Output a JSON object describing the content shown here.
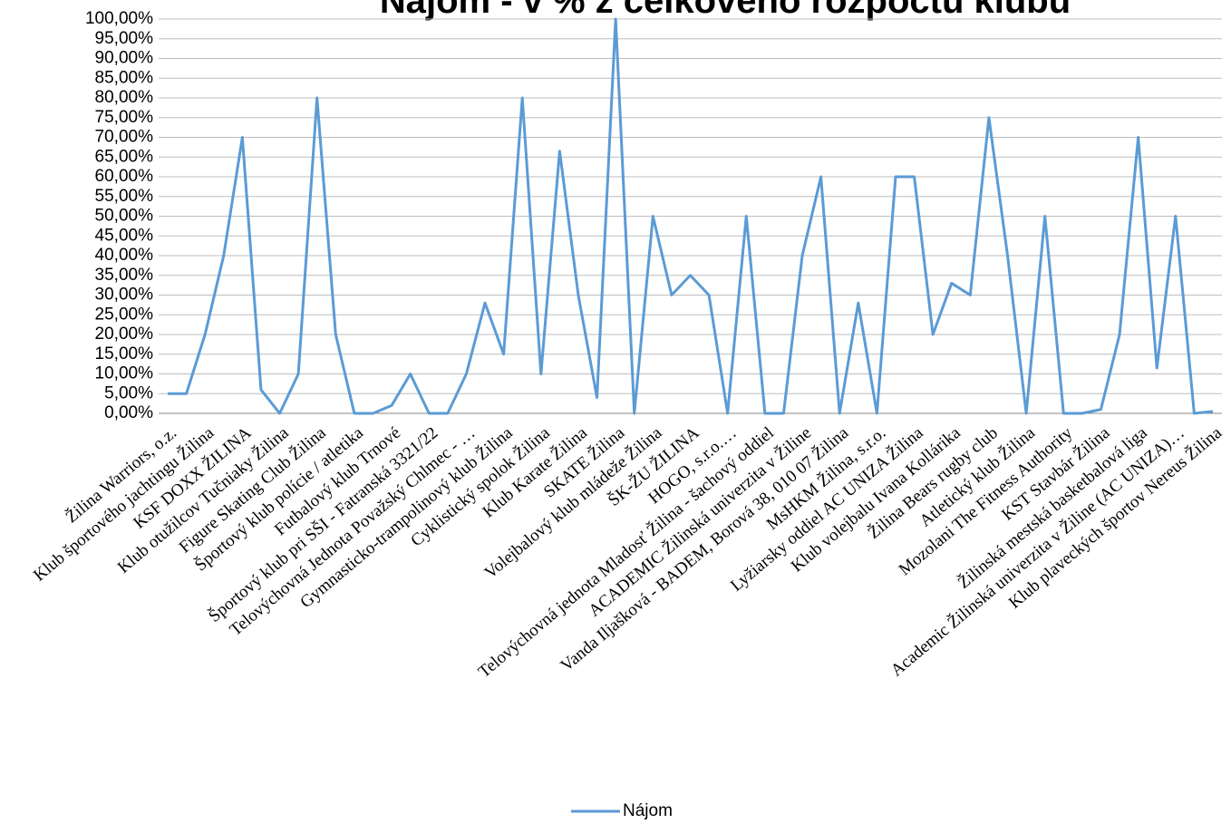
{
  "chart_data": {
    "type": "line",
    "title": "Nájom - v % z celkového rozpočtu klubu",
    "categories": [
      "Žilina Warriors, o.z.",
      null,
      "Klub športového jachtingu Žilina",
      null,
      "KSF DOXX ŽILINA",
      null,
      "Klub otužilcov Tučniaky Žilina",
      null,
      "Figure Skating Club Žilina",
      null,
      "Športový klub polície / atletika",
      null,
      "Futbalový klub Trnové",
      null,
      "Športový klub pri SŠI - Fatranská 3321/22",
      null,
      "Telovýchovná Jednota Považský Chlmec - …",
      null,
      "Gymnasticko-trampolinový klub Žilina",
      null,
      "Cyklistický spolok Žilina",
      null,
      "Klub Karate Žilina",
      null,
      "SKATE Žilina",
      null,
      "Volejbalový klub mládeže Žilina",
      null,
      "ŠK-ŽU ŽILINA",
      null,
      "HOGO, s.r.o.…",
      null,
      "Telovýchovná jednota Mladosť Žilina - šachový oddiel",
      null,
      "ACADEMIC Žilinská univerzita v Žiline",
      null,
      "Vanda Iljašková - BADEM, Borová 38, 010 07 Žilina",
      null,
      "MsHKM Žilina, s.r.o.",
      null,
      "Lyžiarsky oddiel AC UNIZA Žilina",
      null,
      "Klub volejbalu Ivana Kollárika",
      null,
      "Žilina Bears rugby club",
      null,
      "Atletický klub Žilina",
      null,
      "Mozolani The Fitness Authority",
      null,
      "KST Stavbár Žilina",
      null,
      "Žilinská mestská basketbalová liga",
      null,
      "Academic Žilinská univerzita v Žiline (AC UNIZA)…",
      null,
      "Klub plaveckých športov Nereus Žilina"
    ],
    "series": [
      {
        "name": "Nájom",
        "color": "#5b9bd5",
        "values": [
          5,
          5,
          20,
          40,
          70,
          6,
          0,
          10,
          80,
          20,
          0,
          0,
          2,
          10,
          0,
          0,
          10,
          28,
          15,
          80,
          10,
          66.5,
          30,
          4,
          100,
          0,
          50,
          30,
          35,
          30,
          0,
          50,
          0,
          0,
          40,
          60,
          0,
          28,
          0,
          60,
          60,
          20,
          33,
          30,
          75,
          40,
          0,
          50,
          0,
          0,
          1,
          20,
          70,
          11.5,
          50,
          0,
          0.5
        ]
      }
    ],
    "ylim": [
      0,
      100
    ],
    "yticks": [
      {
        "value": 0,
        "label": "0,00%"
      },
      {
        "value": 5,
        "label": "5,00%"
      },
      {
        "value": 10,
        "label": "10,00%"
      },
      {
        "value": 15,
        "label": "15,00%"
      },
      {
        "value": 20,
        "label": "20,00%"
      },
      {
        "value": 25,
        "label": "25,00%"
      },
      {
        "value": 30,
        "label": "30,00%"
      },
      {
        "value": 35,
        "label": "35,00%"
      },
      {
        "value": 40,
        "label": "40,00%"
      },
      {
        "value": 45,
        "label": "45,00%"
      },
      {
        "value": 50,
        "label": "50,00%"
      },
      {
        "value": 55,
        "label": "55,00%"
      },
      {
        "value": 60,
        "label": "60,00%"
      },
      {
        "value": 65,
        "label": "65,00%"
      },
      {
        "value": 70,
        "label": "70,00%"
      },
      {
        "value": 75,
        "label": "75,00%"
      },
      {
        "value": 80,
        "label": "80,00%"
      },
      {
        "value": 85,
        "label": "85,00%"
      },
      {
        "value": 90,
        "label": "90,00%"
      },
      {
        "value": 95,
        "label": "95,00%"
      },
      {
        "value": 100,
        "label": "100,00%"
      }
    ],
    "grid": true,
    "legend": "bottom"
  }
}
